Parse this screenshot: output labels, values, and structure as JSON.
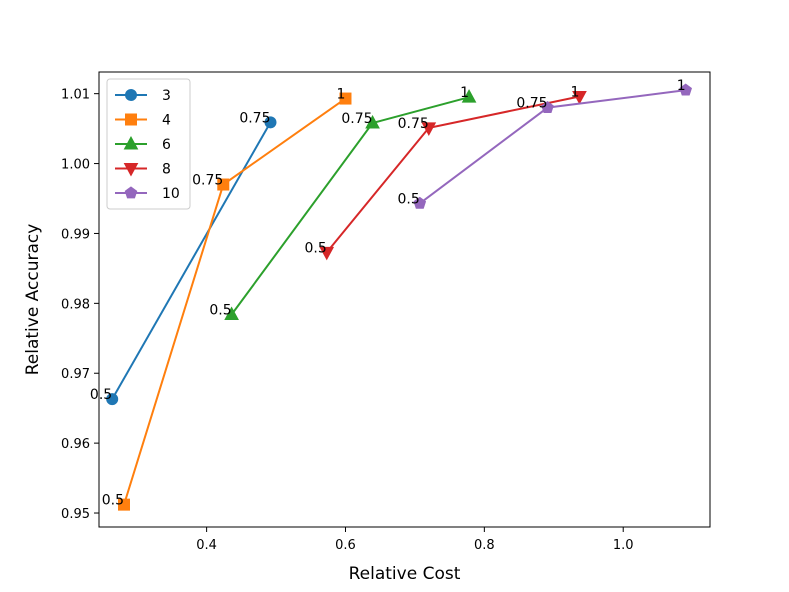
{
  "chart_data": {
    "type": "line",
    "title": "",
    "xlabel": "Relative Cost",
    "ylabel": "Relative Accuracy",
    "xlim": [
      0.245,
      1.125
    ],
    "ylim": [
      0.948,
      1.0131
    ],
    "xticks": [
      0.4,
      0.6,
      0.8,
      1.0
    ],
    "xtick_labels": [
      "0.4",
      "0.6",
      "0.8",
      "1.0"
    ],
    "yticks": [
      0.95,
      0.96,
      0.97,
      0.98,
      0.99,
      1.0,
      1.01
    ],
    "ytick_labels": [
      "0.95",
      "0.96",
      "0.97",
      "0.98",
      "0.99",
      "1.00",
      "1.01"
    ],
    "grid": false,
    "legend_position": "top-left",
    "series": [
      {
        "name": "3",
        "color": "#1f77b4",
        "marker": "circle",
        "points": [
          {
            "x": 0.264,
            "y": 0.9663,
            "label": "0.5"
          },
          {
            "x": 0.492,
            "y": 1.0059,
            "label": "0.75"
          }
        ]
      },
      {
        "name": "4",
        "color": "#ff7f0e",
        "marker": "square",
        "points": [
          {
            "x": 0.281,
            "y": 0.9512,
            "label": "0.5"
          },
          {
            "x": 0.424,
            "y": 0.997,
            "label": "0.75"
          },
          {
            "x": 0.6,
            "y": 1.0093,
            "label": "1"
          }
        ]
      },
      {
        "name": "6",
        "color": "#2ca02c",
        "marker": "triangle-up",
        "points": [
          {
            "x": 0.436,
            "y": 0.9784,
            "label": "0.5"
          },
          {
            "x": 0.639,
            "y": 1.0058,
            "label": "0.75"
          },
          {
            "x": 0.778,
            "y": 1.0095,
            "label": "1"
          }
        ]
      },
      {
        "name": "8",
        "color": "#d62728",
        "marker": "triangle-down",
        "points": [
          {
            "x": 0.573,
            "y": 0.9873,
            "label": "0.5"
          },
          {
            "x": 0.72,
            "y": 1.0051,
            "label": "0.75"
          },
          {
            "x": 0.937,
            "y": 1.0096,
            "label": "1"
          }
        ]
      },
      {
        "name": "10",
        "color": "#9467bd",
        "marker": "pentagon",
        "points": [
          {
            "x": 0.707,
            "y": 0.9943,
            "label": "0.5"
          },
          {
            "x": 0.891,
            "y": 1.008,
            "label": "0.75"
          },
          {
            "x": 1.09,
            "y": 1.0105,
            "label": "1"
          }
        ]
      }
    ]
  }
}
